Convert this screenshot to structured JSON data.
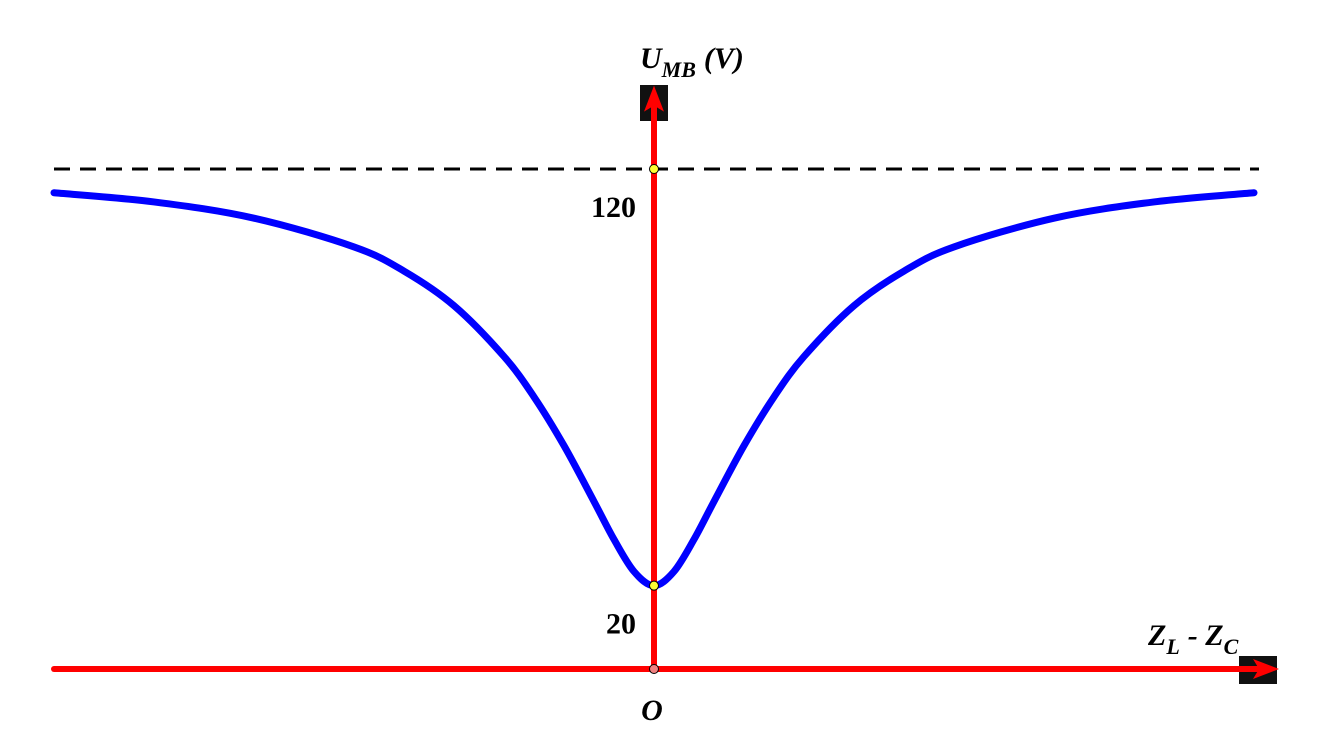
{
  "chart_data": {
    "type": "line",
    "y_label": [
      "U",
      "MB",
      "(V)"
    ],
    "x_label": [
      "Z",
      "L",
      "- Z",
      "C"
    ],
    "origin_label": "O",
    "x": [
      -60,
      -50,
      -40,
      -30,
      -25,
      -20,
      -15,
      -12,
      -9,
      -6,
      -4,
      -2,
      0,
      2,
      4,
      6,
      9,
      12,
      15,
      20,
      25,
      30,
      40,
      50,
      60
    ],
    "series": [
      {
        "color": "#0000ff",
        "values": [
          114.3,
          112.1,
          108.2,
          101.3,
          95.5,
          87.2,
          75.0,
          65.3,
          53.6,
          40.2,
          31.1,
          23.4,
          20.0,
          23.4,
          31.1,
          40.2,
          53.6,
          65.3,
          75.0,
          87.2,
          95.5,
          101.3,
          108.2,
          112.1,
          114.3
        ]
      }
    ],
    "xlim": [
      -60,
      62.5
    ],
    "ylim": [
      0,
      140
    ],
    "yticks": [
      20,
      120
    ],
    "axis_color": "#ff0000",
    "asymptote_color": "#000000"
  }
}
